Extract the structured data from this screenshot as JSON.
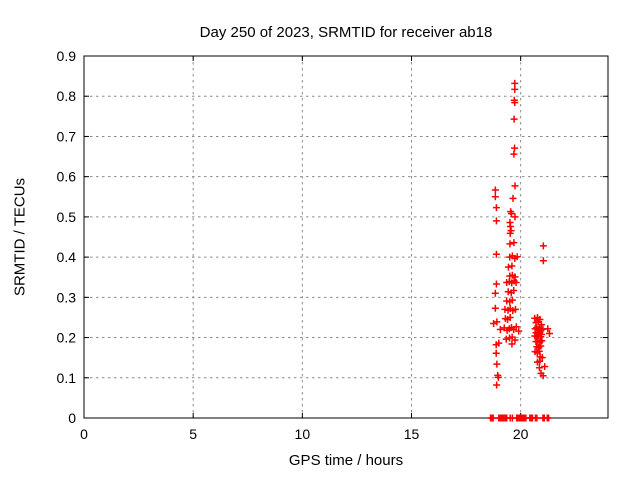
{
  "chart_data": {
    "type": "scatter",
    "title": "Day 250 of 2023, SRMTID for receiver ab18",
    "xlabel": "GPS time / hours",
    "ylabel": "SRMTID / TECUs",
    "xlim": [
      0,
      24
    ],
    "ylim": [
      0,
      0.9
    ],
    "xticks": [
      0,
      5,
      10,
      15,
      20
    ],
    "yticks": [
      0,
      0.1,
      0.2,
      0.3,
      0.4,
      0.5,
      0.6,
      0.7,
      0.8,
      0.9
    ],
    "grid": true,
    "legend": "none",
    "marker": "plus",
    "colors": {
      "marker": "#ff0000",
      "grid": "#8c8c8c",
      "axis": "#000000",
      "background": "#ffffff",
      "text": "#000000"
    },
    "series": [
      {
        "name": "SRMTID",
        "points": [
          [
            19.73,
            0.832
          ],
          [
            19.73,
            0.817
          ],
          [
            19.71,
            0.79
          ],
          [
            19.73,
            0.784
          ],
          [
            19.7,
            0.743
          ],
          [
            19.72,
            0.671
          ],
          [
            19.69,
            0.656
          ],
          [
            19.74,
            0.577
          ],
          [
            18.84,
            0.567
          ],
          [
            18.84,
            0.55
          ],
          [
            19.65,
            0.546
          ],
          [
            18.89,
            0.523
          ],
          [
            19.54,
            0.513
          ],
          [
            19.58,
            0.508
          ],
          [
            19.74,
            0.5
          ],
          [
            18.89,
            0.49
          ],
          [
            19.51,
            0.486
          ],
          [
            19.53,
            0.476
          ],
          [
            19.56,
            0.466
          ],
          [
            19.52,
            0.459
          ],
          [
            19.51,
            0.433
          ],
          [
            19.69,
            0.436
          ],
          [
            21.04,
            0.428
          ],
          [
            18.89,
            0.407
          ],
          [
            19.5,
            0.4
          ],
          [
            19.62,
            0.403
          ],
          [
            19.73,
            0.397
          ],
          [
            19.84,
            0.401
          ],
          [
            21.04,
            0.391
          ],
          [
            19.44,
            0.375
          ],
          [
            19.6,
            0.378
          ],
          [
            19.5,
            0.353
          ],
          [
            19.62,
            0.355
          ],
          [
            19.74,
            0.351
          ],
          [
            18.89,
            0.333
          ],
          [
            19.36,
            0.337
          ],
          [
            19.48,
            0.339
          ],
          [
            19.59,
            0.336
          ],
          [
            19.7,
            0.341
          ],
          [
            19.79,
            0.337
          ],
          [
            18.84,
            0.31
          ],
          [
            19.43,
            0.314
          ],
          [
            19.57,
            0.311
          ],
          [
            19.68,
            0.317
          ],
          [
            19.36,
            0.291
          ],
          [
            19.5,
            0.289
          ],
          [
            19.62,
            0.293
          ],
          [
            18.84,
            0.273
          ],
          [
            19.28,
            0.27
          ],
          [
            19.42,
            0.268
          ],
          [
            19.52,
            0.272
          ],
          [
            19.64,
            0.267
          ],
          [
            19.76,
            0.27
          ],
          [
            18.76,
            0.235
          ],
          [
            18.91,
            0.239
          ],
          [
            19.3,
            0.247
          ],
          [
            19.4,
            0.245
          ],
          [
            19.52,
            0.25
          ],
          [
            19.07,
            0.22
          ],
          [
            19.25,
            0.224
          ],
          [
            19.38,
            0.218
          ],
          [
            19.48,
            0.222
          ],
          [
            19.58,
            0.225
          ],
          [
            19.68,
            0.22
          ],
          [
            19.8,
            0.227
          ],
          [
            19.91,
            0.216
          ],
          [
            19.34,
            0.196
          ],
          [
            19.49,
            0.199
          ],
          [
            19.61,
            0.201
          ],
          [
            19.74,
            0.194
          ],
          [
            18.88,
            0.182
          ],
          [
            19.0,
            0.186
          ],
          [
            19.6,
            0.184
          ],
          [
            18.88,
            0.161
          ],
          [
            18.91,
            0.134
          ],
          [
            18.95,
            0.106
          ],
          [
            18.98,
            0.101
          ],
          [
            18.9,
            0.082
          ],
          [
            20.64,
            0.248
          ],
          [
            20.77,
            0.25
          ],
          [
            20.88,
            0.245
          ],
          [
            20.7,
            0.237
          ],
          [
            20.81,
            0.239
          ],
          [
            20.95,
            0.232
          ],
          [
            20.66,
            0.222
          ],
          [
            20.73,
            0.224
          ],
          [
            20.8,
            0.22
          ],
          [
            20.87,
            0.223
          ],
          [
            20.94,
            0.219
          ],
          [
            21.02,
            0.221
          ],
          [
            21.24,
            0.222
          ],
          [
            20.7,
            0.212
          ],
          [
            20.78,
            0.21
          ],
          [
            20.86,
            0.212
          ],
          [
            20.95,
            0.208
          ],
          [
            21.32,
            0.21
          ],
          [
            20.65,
            0.204
          ],
          [
            20.74,
            0.203
          ],
          [
            20.83,
            0.205
          ],
          [
            20.92,
            0.202
          ],
          [
            20.7,
            0.19
          ],
          [
            20.79,
            0.191
          ],
          [
            20.88,
            0.189
          ],
          [
            20.97,
            0.192
          ],
          [
            20.74,
            0.177
          ],
          [
            20.83,
            0.175
          ],
          [
            20.92,
            0.179
          ],
          [
            20.66,
            0.165
          ],
          [
            20.76,
            0.162
          ],
          [
            20.85,
            0.166
          ],
          [
            20.89,
            0.152
          ],
          [
            20.99,
            0.15
          ],
          [
            20.77,
            0.139
          ],
          [
            20.87,
            0.141
          ],
          [
            20.86,
            0.125
          ],
          [
            21.1,
            0.128
          ],
          [
            20.93,
            0.111
          ],
          [
            21.03,
            0.105
          ],
          [
            18.62,
            0
          ],
          [
            18.68,
            0
          ],
          [
            18.74,
            0
          ],
          [
            19.0,
            0
          ],
          [
            19.06,
            0
          ],
          [
            19.12,
            0
          ],
          [
            19.18,
            0
          ],
          [
            19.24,
            0
          ],
          [
            19.3,
            0
          ],
          [
            19.36,
            0
          ],
          [
            19.52,
            0
          ],
          [
            19.62,
            0
          ],
          [
            19.82,
            0
          ],
          [
            19.88,
            0
          ],
          [
            19.94,
            0
          ],
          [
            20.0,
            0
          ],
          [
            20.06,
            0
          ],
          [
            20.12,
            0
          ],
          [
            20.18,
            0
          ],
          [
            20.24,
            0
          ],
          [
            20.42,
            0
          ],
          [
            20.48,
            0
          ],
          [
            20.54,
            0
          ],
          [
            20.68,
            0
          ],
          [
            20.74,
            0
          ],
          [
            21.02,
            0
          ],
          [
            21.08,
            0
          ],
          [
            21.22,
            0
          ],
          [
            21.28,
            0
          ]
        ]
      }
    ]
  }
}
